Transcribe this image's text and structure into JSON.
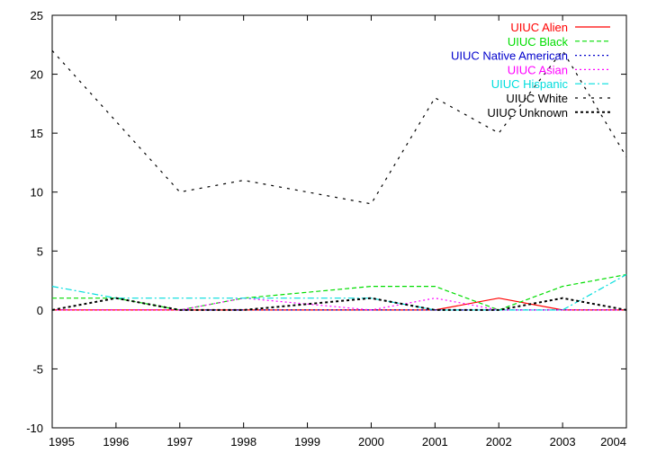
{
  "chart_data": {
    "type": "line",
    "title": "",
    "xlabel": "",
    "ylabel": "",
    "xlim": [
      1995,
      2004
    ],
    "ylim": [
      -10,
      25
    ],
    "grid": false,
    "legend_position": "top-right",
    "x": [
      1995,
      1996,
      1997,
      1998,
      1999,
      2000,
      2001,
      2002,
      2003,
      2004
    ],
    "x_ticks": [
      "1995",
      "1996",
      "1997",
      "1998",
      "1999",
      "2000",
      "2001",
      "2002",
      "2003",
      "2004"
    ],
    "y_ticks": [
      "-10",
      "-5",
      "0",
      "5",
      "10",
      "15",
      "20",
      "25"
    ],
    "series": [
      {
        "name": "UIUC Alien",
        "color": "#ff0000",
        "dash": "solid",
        "values": [
          0,
          0,
          0,
          0,
          0,
          0,
          0,
          1,
          0,
          0
        ]
      },
      {
        "name": "UIUC Black",
        "color": "#00dd00",
        "dash": "dashed",
        "values": [
          1,
          1,
          0,
          1,
          1.5,
          2,
          2,
          0,
          2,
          3
        ]
      },
      {
        "name": "UIUC Native American",
        "color": "#0000cc",
        "dash": "dotted",
        "values": [
          0,
          0,
          0,
          0,
          0,
          0,
          0,
          0,
          0,
          0
        ]
      },
      {
        "name": "UIUC Asian",
        "color": "#ff00ff",
        "dash": "dotted",
        "values": [
          0,
          0,
          0,
          1,
          0.5,
          0,
          1,
          0,
          0,
          0
        ]
      },
      {
        "name": "UIUC Hispanic",
        "color": "#00dddd",
        "dash": "dashdot",
        "values": [
          2,
          1,
          1,
          1,
          1,
          1,
          0,
          0,
          0,
          3
        ]
      },
      {
        "name": "UIUC White",
        "color": "#000000",
        "dash": "sparse",
        "values": [
          22,
          16,
          10,
          11,
          10,
          9,
          18,
          15,
          22,
          13
        ]
      },
      {
        "name": "UIUC Unknown",
        "color": "#000000",
        "dash": "densedot",
        "values": [
          0,
          1,
          0,
          0,
          0.5,
          1,
          0,
          0,
          1,
          0
        ]
      }
    ]
  }
}
